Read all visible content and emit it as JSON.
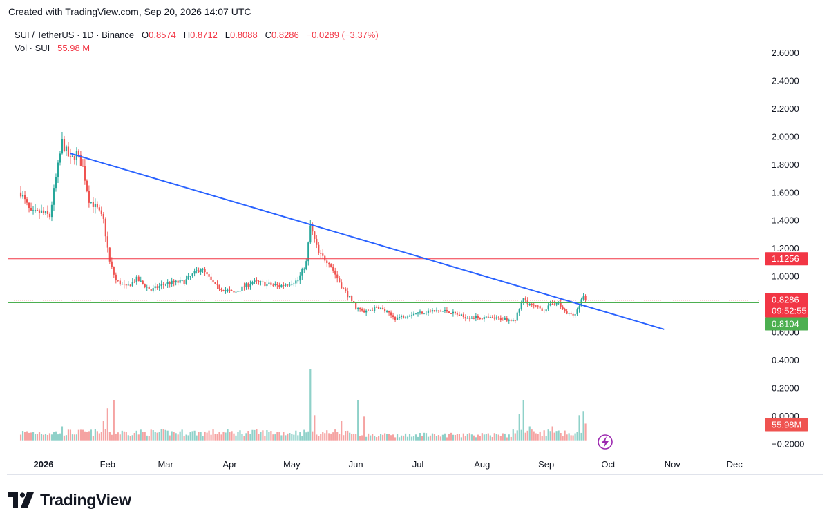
{
  "header": {
    "created": "Created with TradingView.com, Sep 20, 2026 14:07 UTC"
  },
  "legend": {
    "symbol": "SUI / TetherUS · 1D · Binance",
    "open_label": "O",
    "open": "0.8574",
    "high_label": "H",
    "high": "0.8712",
    "low_label": "L",
    "low": "0.8088",
    "close_label": "C",
    "close": "0.8286",
    "change": "−0.0289 (−3.37%)",
    "vol_label": "Vol · SUI",
    "vol_value": "55.98 M"
  },
  "colors": {
    "up": "#26a69a",
    "down": "#ef5350",
    "trendline": "#2962ff",
    "resistance": "#f23645",
    "support": "#4caf50",
    "bg": "#ffffff"
  },
  "icons": {
    "brand": "tradingview-logo-icon",
    "alert": "lightning-icon"
  },
  "brand": {
    "name": "TradingView"
  },
  "chart_data": {
    "type": "candlestick",
    "symbol": "SUI / TetherUS",
    "interval": "1D",
    "exchange": "Binance",
    "y_ticks": [
      "2.6000",
      "2.4000",
      "2.2000",
      "2.0000",
      "1.8000",
      "1.6000",
      "1.4000",
      "1.2000",
      "1.0000",
      "0.6000",
      "0.4000",
      "0.2000",
      "0.0000",
      "−0.2000"
    ],
    "y_range": [
      -0.2,
      2.7
    ],
    "x_ticks": [
      "2026",
      "Feb",
      "Mar",
      "Apr",
      "May",
      "Jun",
      "Jul",
      "Aug",
      "Sep",
      "Oct",
      "Nov",
      "Dec"
    ],
    "price_anchors": [
      {
        "date": "2025-12-21",
        "price": 1.6
      },
      {
        "date": "2025-12-26",
        "price": 1.45
      },
      {
        "date": "2025-12-31",
        "price": 1.46
      },
      {
        "date": "2026-01-04",
        "price": 1.43
      },
      {
        "date": "2026-01-07",
        "price": 1.7
      },
      {
        "date": "2026-01-10",
        "price": 1.96
      },
      {
        "date": "2026-01-14",
        "price": 1.83
      },
      {
        "date": "2026-01-17",
        "price": 1.88
      },
      {
        "date": "2026-01-20",
        "price": 1.78
      },
      {
        "date": "2026-01-23",
        "price": 1.55
      },
      {
        "date": "2026-01-27",
        "price": 1.48
      },
      {
        "date": "2026-01-30",
        "price": 1.4
      },
      {
        "date": "2026-02-02",
        "price": 1.1
      },
      {
        "date": "2026-02-05",
        "price": 0.97
      },
      {
        "date": "2026-02-10",
        "price": 0.92
      },
      {
        "date": "2026-02-15",
        "price": 0.98
      },
      {
        "date": "2026-02-22",
        "price": 0.9
      },
      {
        "date": "2026-03-01",
        "price": 0.95
      },
      {
        "date": "2026-03-10",
        "price": 0.96
      },
      {
        "date": "2026-03-18",
        "price": 1.06
      },
      {
        "date": "2026-03-25",
        "price": 0.93
      },
      {
        "date": "2026-04-03",
        "price": 0.88
      },
      {
        "date": "2026-04-12",
        "price": 0.96
      },
      {
        "date": "2026-04-25",
        "price": 0.93
      },
      {
        "date": "2026-05-04",
        "price": 0.97
      },
      {
        "date": "2026-05-08",
        "price": 1.1
      },
      {
        "date": "2026-05-10",
        "price": 1.36
      },
      {
        "date": "2026-05-14",
        "price": 1.16
      },
      {
        "date": "2026-05-19",
        "price": 1.1
      },
      {
        "date": "2026-05-25",
        "price": 0.93
      },
      {
        "date": "2026-06-01",
        "price": 0.78
      },
      {
        "date": "2026-06-05",
        "price": 0.74
      },
      {
        "date": "2026-06-12",
        "price": 0.78
      },
      {
        "date": "2026-06-20",
        "price": 0.7
      },
      {
        "date": "2026-06-28",
        "price": 0.73
      },
      {
        "date": "2026-07-06",
        "price": 0.75
      },
      {
        "date": "2026-07-15",
        "price": 0.75
      },
      {
        "date": "2026-07-23",
        "price": 0.71
      },
      {
        "date": "2026-08-05",
        "price": 0.7
      },
      {
        "date": "2026-08-17",
        "price": 0.69
      },
      {
        "date": "2026-08-21",
        "price": 0.84
      },
      {
        "date": "2026-08-25",
        "price": 0.79
      },
      {
        "date": "2026-08-31",
        "price": 0.76
      },
      {
        "date": "2026-09-06",
        "price": 0.82
      },
      {
        "date": "2026-09-11",
        "price": 0.73
      },
      {
        "date": "2026-09-15",
        "price": 0.72
      },
      {
        "date": "2026-09-17",
        "price": 0.8
      },
      {
        "date": "2026-09-19",
        "price": 0.8574
      },
      {
        "date": "2026-09-20",
        "price": 0.8286
      }
    ],
    "last_candle": {
      "date": "2026-09-20",
      "open": 0.8574,
      "high": 0.8712,
      "low": 0.8088,
      "close": 0.8286
    },
    "trendline": [
      {
        "date": "2026-01-14",
        "price": 1.88
      },
      {
        "date": "2026-10-28",
        "price": 0.62
      }
    ],
    "horizontal_lines": [
      {
        "name": "resistance",
        "price": 1.1256,
        "label": "1.1256",
        "color": "#f23645"
      },
      {
        "name": "support",
        "price": 0.8104,
        "label": "0.8104",
        "color": "#4caf50"
      }
    ],
    "price_tag": {
      "price": 0.8286,
      "label": "0.8286",
      "countdown": "09:52:55"
    },
    "volume": {
      "last": "55.98 M",
      "tag_label": "55.98M"
    },
    "volume_spikes": [
      {
        "date": "2026-01-10",
        "value": 0.1
      },
      {
        "date": "2026-01-30",
        "value": 0.14
      },
      {
        "date": "2026-02-01",
        "value": 0.23
      },
      {
        "date": "2026-02-04",
        "value": 0.29
      },
      {
        "date": "2026-05-10",
        "value": 0.51
      },
      {
        "date": "2026-05-12",
        "value": 0.18
      },
      {
        "date": "2026-05-25",
        "value": 0.14
      },
      {
        "date": "2026-06-02",
        "value": 0.29
      },
      {
        "date": "2026-06-05",
        "value": 0.17
      },
      {
        "date": "2026-08-19",
        "value": 0.19
      },
      {
        "date": "2026-08-21",
        "value": 0.29
      },
      {
        "date": "2026-08-24",
        "value": 0.1
      },
      {
        "date": "2026-09-04",
        "value": 0.1
      },
      {
        "date": "2026-09-17",
        "value": 0.18
      },
      {
        "date": "2026-09-19",
        "value": 0.21
      }
    ],
    "grid": false,
    "legend_position": "top-left"
  }
}
